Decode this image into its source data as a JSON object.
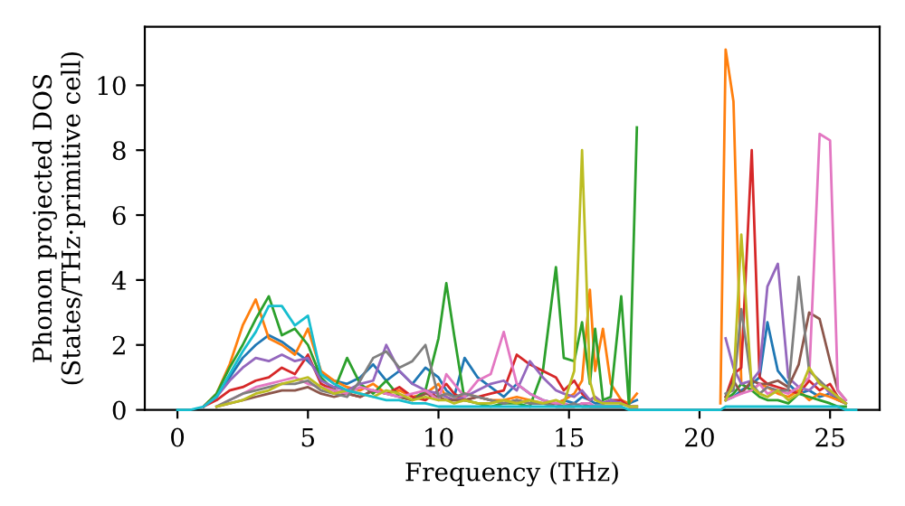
{
  "chart_data": {
    "type": "line",
    "xlabel": "Frequency (THz)",
    "ylabel": "Phonon projected DOS\n(States/THz·primitive cell)",
    "x": [
      0,
      0.5,
      1,
      1.5,
      2,
      2.5,
      3,
      3.5,
      4,
      4.5,
      5,
      5.5,
      6,
      6.5,
      7,
      7.5,
      8,
      8.5,
      9,
      9.5,
      10,
      10.3,
      10.6,
      11,
      11.5,
      12,
      12.5,
      13,
      13.5,
      14,
      14.5,
      14.8,
      15.2,
      15.5,
      15.8,
      16,
      16.3,
      16.6,
      17,
      17.3,
      17.6,
      17.9,
      18.2,
      18.5,
      19,
      20,
      20.8,
      21,
      21.3,
      21.6,
      22,
      22.3,
      22.6,
      23,
      23.4,
      23.8,
      24.2,
      24.6,
      25,
      25.3,
      25.6,
      26
    ],
    "xlim": [
      -1.25,
      26.9
    ],
    "xticks": [
      0,
      5,
      10,
      15,
      20,
      25
    ],
    "ylim": [
      0,
      11.8
    ],
    "yticks": [
      0,
      2,
      4,
      6,
      8,
      10
    ],
    "grid": false,
    "line_style": "solid",
    "series": [
      {
        "color": "#1f77b4",
        "values": [
          null,
          null,
          0.1,
          0.4,
          1.0,
          1.6,
          2.0,
          2.3,
          2.1,
          1.8,
          1.5,
          1.1,
          0.9,
          0.8,
          1.0,
          1.4,
          0.9,
          1.2,
          0.8,
          1.3,
          1.0,
          0.6,
          0.4,
          1.6,
          1.0,
          0.7,
          0.4,
          0.8,
          0.5,
          0.3,
          0.2,
          0.3,
          0.2,
          0.4,
          0.3,
          0.2,
          0.2,
          0.3,
          0.2,
          0.2,
          0.3,
          null,
          null,
          null,
          null,
          null,
          null,
          0.3,
          0.4,
          0.6,
          0.8,
          1.0,
          2.7,
          1.2,
          0.8,
          0.5,
          0.6,
          0.4,
          0.5,
          0.3,
          0.2,
          null
        ]
      },
      {
        "color": "#ff7f0e",
        "values": [
          null,
          null,
          0.1,
          0.5,
          1.4,
          2.6,
          3.4,
          2.2,
          2.0,
          1.7,
          2.5,
          1.2,
          0.9,
          0.7,
          0.6,
          0.8,
          0.5,
          0.6,
          0.4,
          0.5,
          0.8,
          0.4,
          0.3,
          0.5,
          0.4,
          0.3,
          0.3,
          0.4,
          0.3,
          0.2,
          0.2,
          0.3,
          0.5,
          0.9,
          3.7,
          1.2,
          2.5,
          0.8,
          0.3,
          0.2,
          0.5,
          null,
          null,
          null,
          null,
          null,
          0.2,
          11.1,
          9.5,
          0.8,
          0.6,
          0.8,
          0.7,
          0.5,
          0.4,
          0.6,
          0.3,
          0.5,
          0.4,
          0.3,
          0.2,
          null
        ]
      },
      {
        "color": "#2ca02c",
        "values": [
          null,
          null,
          0.1,
          0.5,
          1.3,
          2.0,
          2.8,
          3.5,
          2.3,
          2.5,
          2.0,
          1.0,
          0.6,
          1.6,
          0.8,
          0.5,
          0.9,
          0.4,
          0.3,
          0.6,
          2.2,
          3.9,
          2.3,
          0.3,
          0.2,
          0.1,
          0.2,
          0.2,
          0.1,
          1.2,
          4.4,
          1.6,
          1.5,
          2.7,
          0.8,
          2.5,
          0.3,
          0.4,
          3.5,
          0.1,
          8.7,
          null,
          null,
          null,
          null,
          null,
          null,
          0.3,
          0.5,
          0.8,
          0.6,
          0.4,
          0.3,
          0.3,
          0.2,
          0.5,
          0.4,
          0.3,
          0.2,
          0.1,
          0.1,
          null
        ]
      },
      {
        "color": "#d62728",
        "values": [
          null,
          null,
          0.1,
          0.3,
          0.6,
          0.7,
          0.9,
          1.0,
          1.3,
          1.1,
          1.7,
          0.8,
          0.6,
          0.5,
          0.4,
          0.6,
          0.5,
          0.7,
          0.4,
          0.3,
          0.6,
          0.8,
          0.5,
          0.3,
          0.4,
          0.5,
          0.6,
          1.7,
          1.4,
          1.2,
          1.0,
          0.6,
          0.9,
          0.5,
          0.3,
          0.4,
          0.2,
          0.3,
          0.3,
          0.1,
          0.1,
          null,
          null,
          null,
          null,
          null,
          null,
          0.4,
          1.1,
          1.3,
          8.0,
          1.0,
          0.8,
          0.7,
          0.6,
          0.5,
          0.9,
          0.6,
          0.8,
          0.4,
          0.2,
          null
        ]
      },
      {
        "color": "#9467bd",
        "values": [
          null,
          null,
          0.1,
          0.4,
          0.9,
          1.3,
          1.6,
          1.5,
          1.7,
          1.5,
          1.6,
          0.9,
          0.7,
          0.6,
          0.8,
          0.9,
          2.0,
          1.2,
          0.8,
          0.6,
          0.5,
          0.4,
          0.3,
          0.4,
          0.6,
          0.8,
          0.9,
          0.6,
          1.5,
          1.0,
          0.6,
          0.5,
          0.4,
          0.6,
          0.3,
          0.4,
          0.2,
          0.3,
          0.2,
          0.1,
          0.1,
          null,
          null,
          null,
          null,
          null,
          null,
          2.2,
          1.3,
          0.8,
          0.9,
          1.2,
          3.8,
          4.5,
          1.0,
          0.7,
          0.6,
          0.9,
          0.5,
          0.4,
          0.2,
          null
        ]
      },
      {
        "color": "#8c564b",
        "values": [
          null,
          null,
          null,
          0.1,
          0.2,
          0.3,
          0.4,
          0.5,
          0.6,
          0.6,
          0.7,
          0.5,
          0.4,
          0.5,
          0.4,
          0.6,
          0.5,
          0.4,
          0.3,
          0.5,
          0.4,
          0.3,
          0.3,
          0.3,
          0.4,
          0.3,
          0.2,
          0.3,
          0.2,
          0.2,
          0.2,
          0.1,
          0.1,
          0.2,
          0.1,
          0.1,
          0.1,
          0.1,
          0.1,
          null,
          null,
          null,
          null,
          null,
          null,
          null,
          null,
          0.4,
          0.9,
          0.5,
          0.9,
          0.8,
          0.8,
          0.9,
          0.7,
          1.4,
          3.0,
          2.8,
          1.5,
          0.6,
          0.3,
          null
        ]
      },
      {
        "color": "#e377c2",
        "values": [
          null,
          null,
          null,
          0.1,
          0.3,
          0.5,
          0.7,
          0.8,
          0.9,
          1.0,
          0.8,
          0.7,
          0.6,
          0.5,
          0.7,
          0.6,
          0.5,
          0.4,
          0.5,
          0.6,
          0.3,
          1.1,
          0.8,
          0.4,
          0.9,
          1.1,
          2.4,
          0.8,
          0.5,
          0.3,
          0.2,
          0.2,
          0.1,
          0.2,
          0.2,
          0.1,
          0.1,
          0.1,
          0.1,
          null,
          null,
          null,
          null,
          null,
          null,
          null,
          null,
          0.3,
          0.4,
          0.5,
          0.6,
          0.8,
          0.5,
          0.6,
          0.5,
          0.7,
          1.0,
          8.5,
          8.3,
          0.6,
          0.3,
          null
        ]
      },
      {
        "color": "#7f7f7f",
        "values": [
          null,
          null,
          null,
          0.1,
          0.3,
          0.5,
          0.6,
          0.7,
          0.8,
          0.8,
          0.9,
          0.6,
          0.5,
          0.4,
          0.9,
          1.6,
          1.8,
          1.3,
          1.5,
          2.0,
          0.4,
          0.5,
          0.4,
          0.5,
          0.4,
          0.3,
          0.2,
          0.3,
          0.2,
          0.2,
          0.1,
          0.1,
          0.2,
          0.1,
          0.1,
          0.1,
          0.1,
          0.1,
          0.1,
          null,
          null,
          null,
          null,
          null,
          null,
          null,
          null,
          0.5,
          0.6,
          3.1,
          0.8,
          0.5,
          0.7,
          0.6,
          0.6,
          4.1,
          1.2,
          0.9,
          0.6,
          0.4,
          0.2,
          null
        ]
      },
      {
        "color": "#bcbd22",
        "values": [
          null,
          null,
          null,
          0.1,
          0.2,
          0.3,
          0.5,
          0.6,
          0.8,
          0.9,
          1.0,
          0.7,
          0.5,
          0.6,
          0.5,
          0.4,
          0.6,
          0.5,
          0.3,
          0.4,
          0.3,
          0.3,
          0.2,
          0.3,
          0.2,
          0.2,
          0.3,
          0.2,
          0.3,
          0.2,
          0.3,
          0.2,
          1.2,
          8.0,
          0.9,
          0.3,
          0.2,
          0.2,
          0.2,
          0.1,
          0.1,
          null,
          null,
          null,
          null,
          null,
          null,
          0.3,
          0.8,
          5.4,
          0.7,
          0.5,
          0.4,
          0.6,
          0.3,
          0.5,
          1.3,
          0.8,
          0.6,
          0.4,
          0.2,
          null
        ]
      },
      {
        "color": "#17becf",
        "values": [
          0,
          0,
          0.1,
          0.4,
          1.1,
          1.8,
          2.4,
          3.2,
          3.2,
          2.6,
          2.9,
          1.1,
          0.8,
          0.6,
          0.5,
          0.4,
          0.3,
          0.3,
          0.2,
          0.2,
          0.1,
          0.1,
          0.1,
          0.1,
          0.1,
          0.1,
          0.1,
          0.1,
          0.1,
          0.1,
          0.1,
          0.1,
          0.1,
          0.1,
          0.1,
          0.1,
          0.1,
          0.1,
          0.1,
          0,
          0,
          0,
          0,
          0,
          0,
          0,
          0,
          0.1,
          0.1,
          0.1,
          0.1,
          0.1,
          0.1,
          0.1,
          0.1,
          0.1,
          0.1,
          0.1,
          0.1,
          0.1,
          0,
          0
        ]
      }
    ]
  }
}
